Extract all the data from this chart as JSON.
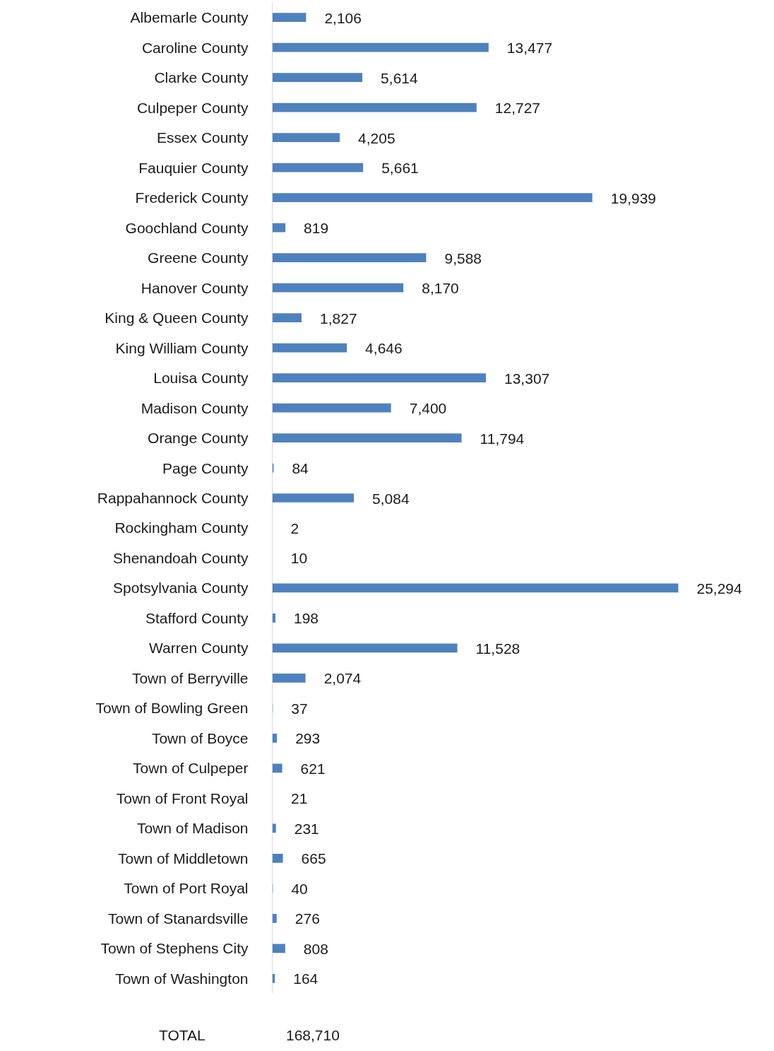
{
  "chart_data": {
    "type": "bar",
    "orientation": "horizontal",
    "grid": false,
    "color": "#4f81bd",
    "value_labels": [
      "2,106",
      "13,477",
      "5,614",
      "12,727",
      "4,205",
      "5,661",
      "19,939",
      "819",
      "9,588",
      "8,170",
      "1,827",
      "4,646",
      "13,307",
      "7,400",
      "11,794",
      "84",
      "5,084",
      "2",
      "10",
      "25,294",
      "198",
      "11,528",
      "2,074",
      "37",
      "293",
      "621",
      "21",
      "231",
      "665",
      "40",
      "276",
      "808",
      "164"
    ],
    "categories": [
      "Albemarle County",
      "Caroline County",
      "Clarke County",
      "Culpeper County",
      "Essex County",
      "Fauquier County",
      "Frederick County",
      "Goochland County",
      "Greene County",
      "Hanover County",
      "King & Queen County",
      "King William County",
      "Louisa County",
      "Madison County",
      "Orange County",
      "Page County",
      "Rappahannock County",
      "Rockingham County",
      "Shenandoah County",
      "Spotsylvania County",
      "Stafford County",
      "Warren County",
      "Town of Berryville",
      "Town of Bowling Green",
      "Town of Boyce",
      "Town of Culpeper",
      "Town of Front Royal",
      "Town of Madison",
      "Town of Middletown",
      "Town of Port Royal",
      "Town of Stanardsville",
      "Town of Stephens City",
      "Town of Washington"
    ],
    "values": [
      2106,
      13477,
      5614,
      12727,
      4205,
      5661,
      19939,
      819,
      9588,
      8170,
      1827,
      4646,
      13307,
      7400,
      11794,
      84,
      5084,
      2,
      10,
      25294,
      198,
      11528,
      2074,
      37,
      293,
      621,
      21,
      231,
      665,
      40,
      276,
      808,
      164
    ],
    "annotations": [
      "TOTAL",
      "168,710"
    ]
  }
}
